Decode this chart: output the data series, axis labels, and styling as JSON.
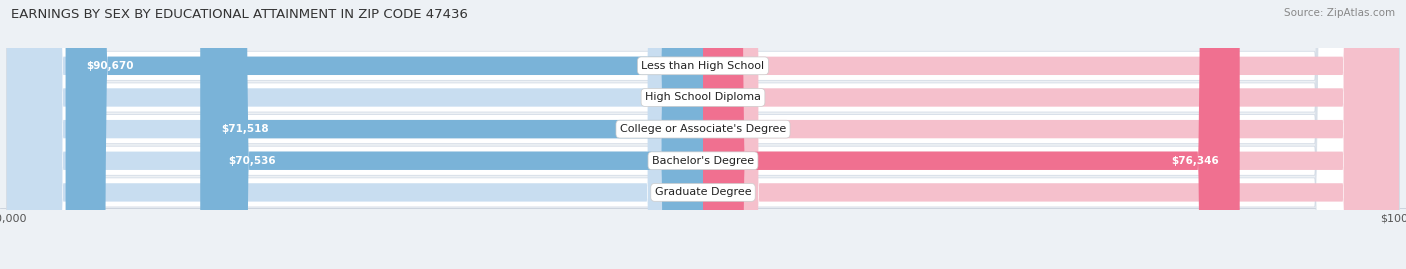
{
  "title": "EARNINGS BY SEX BY EDUCATIONAL ATTAINMENT IN ZIP CODE 47436",
  "source": "Source: ZipAtlas.com",
  "categories": [
    "Less than High School",
    "High School Diploma",
    "College or Associate's Degree",
    "Bachelor's Degree",
    "Graduate Degree"
  ],
  "male_values": [
    90670,
    0,
    71518,
    70536,
    0
  ],
  "female_values": [
    0,
    0,
    0,
    76346,
    0
  ],
  "male_color": "#7ab3d8",
  "female_color": "#f07090",
  "male_bg_color": "#c8ddf0",
  "female_bg_color": "#f5c0cc",
  "max_value": 100000,
  "background_color": "#edf1f5",
  "row_bg_color": "#ffffff",
  "row_edge_color": "#d4dce6",
  "title_fontsize": 9.5,
  "source_fontsize": 7.5,
  "label_fontsize": 7.5,
  "cat_fontsize": 8
}
